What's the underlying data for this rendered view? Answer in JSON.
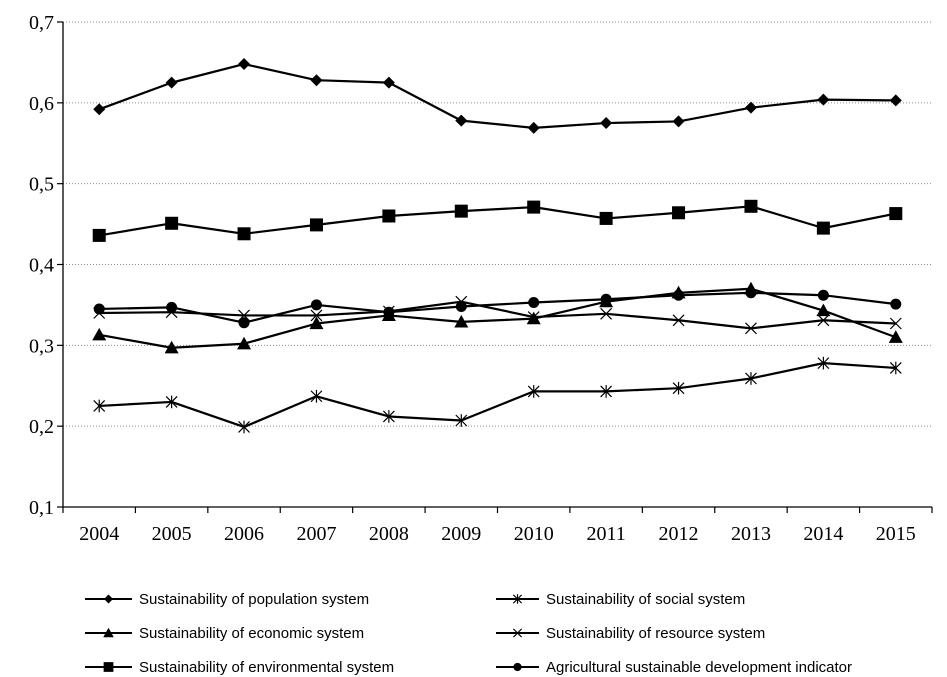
{
  "chart_data": {
    "type": "line",
    "title": "",
    "xlabel": "",
    "ylabel": "",
    "x": [
      "2004",
      "2005",
      "2006",
      "2007",
      "2008",
      "2009",
      "2010",
      "2011",
      "2012",
      "2013",
      "2014",
      "2015"
    ],
    "ylim": [
      0.1,
      0.7
    ],
    "yticks": [
      "0,1",
      "0,2",
      "0,3",
      "0,4",
      "0,5",
      "0,6",
      "0,7"
    ],
    "ytick_values": [
      0.1,
      0.2,
      0.3,
      0.4,
      0.5,
      0.6,
      0.7
    ],
    "grid": "horizontal dotted",
    "legend_position": "bottom",
    "series": [
      {
        "name": "Sustainability of population system",
        "marker": "diamond",
        "values": [
          0.592,
          0.625,
          0.648,
          0.628,
          0.625,
          0.578,
          0.569,
          0.575,
          0.577,
          0.594,
          0.604,
          0.603
        ]
      },
      {
        "name": "Sustainability of social system",
        "marker": "asterisk",
        "values": [
          0.225,
          0.23,
          0.199,
          0.237,
          0.212,
          0.207,
          0.243,
          0.243,
          0.247,
          0.259,
          0.278,
          0.272
        ]
      },
      {
        "name": "Sustainability of economic system",
        "marker": "triangle",
        "values": [
          0.313,
          0.297,
          0.302,
          0.327,
          0.337,
          0.329,
          0.333,
          0.354,
          0.365,
          0.37,
          0.343,
          0.31
        ]
      },
      {
        "name": "Sustainability of resource system",
        "marker": "x",
        "values": [
          0.34,
          0.341,
          0.337,
          0.337,
          0.342,
          0.354,
          0.335,
          0.339,
          0.331,
          0.321,
          0.331,
          0.327
        ]
      },
      {
        "name": "Sustainability of environmental system",
        "marker": "square",
        "values": [
          0.436,
          0.451,
          0.438,
          0.449,
          0.46,
          0.466,
          0.471,
          0.457,
          0.464,
          0.472,
          0.445,
          0.463
        ]
      },
      {
        "name": "Agricultural sustainable development indicator",
        "marker": "circle",
        "values": [
          0.345,
          0.347,
          0.328,
          0.35,
          0.341,
          0.348,
          0.353,
          0.357,
          0.362,
          0.365,
          0.362,
          0.351
        ]
      }
    ]
  }
}
